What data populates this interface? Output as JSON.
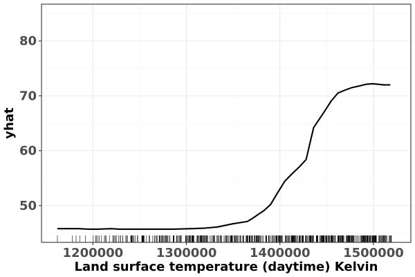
{
  "chart_data": {
    "type": "line",
    "title": "",
    "xlabel": "Land surface temperature (daytime) Kelvin",
    "ylabel": "yhat",
    "xlim": [
      1145000,
      1540000
    ],
    "ylim": [
      43.3,
      86.7
    ],
    "x_ticks": [
      1200000,
      1300000,
      1400000,
      1500000
    ],
    "x_tick_labels": [
      "1200000",
      "1300000",
      "1400000",
      "1500000"
    ],
    "y_ticks": [
      50,
      60,
      70,
      80
    ],
    "y_tick_labels": [
      "50",
      "60",
      "70",
      "80"
    ],
    "grid": true,
    "legend": "none",
    "series": [
      {
        "x": [
          1162000,
          1185000,
          1195000,
          1205000,
          1220000,
          1228000,
          1250000,
          1270000,
          1285000,
          1305000,
          1320000,
          1333000,
          1350000,
          1365000,
          1370000,
          1376000,
          1383000,
          1390000,
          1397000,
          1405000,
          1413000,
          1421000,
          1428000,
          1436000,
          1447000,
          1455000,
          1462000,
          1469000,
          1477000,
          1485000,
          1492000,
          1499000,
          1505000,
          1511000,
          1518000
        ],
        "y": [
          45.8,
          45.8,
          45.7,
          45.7,
          45.8,
          45.7,
          45.7,
          45.7,
          45.7,
          45.8,
          45.9,
          46.1,
          46.7,
          47.1,
          47.6,
          48.3,
          49.1,
          50.2,
          52.2,
          54.4,
          55.8,
          57.1,
          58.4,
          64.2,
          67.0,
          69.1,
          70.5,
          71.0,
          71.5,
          71.8,
          72.1,
          72.2,
          72.1,
          72.0,
          72.0
        ]
      }
    ],
    "rug": {
      "seed": 7,
      "sparse_start": 1162000,
      "dense_start": 1200000,
      "dense_end": 1520000,
      "count": 520
    }
  }
}
